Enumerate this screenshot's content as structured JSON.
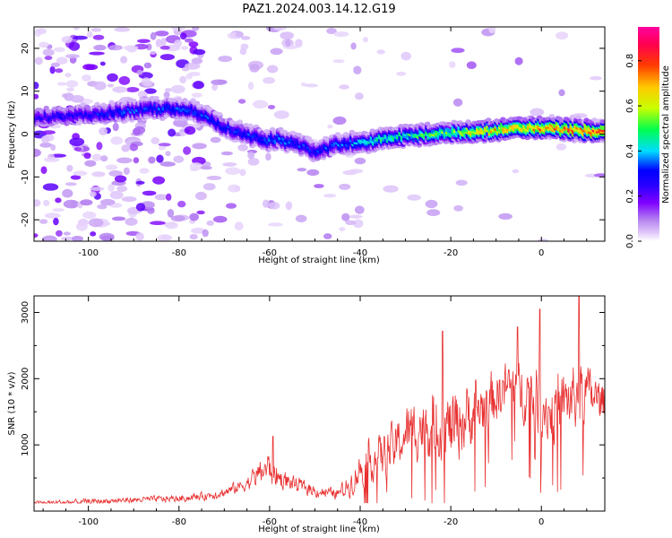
{
  "title": "PAZ1.2024.003.14.12.G19",
  "chart_data": [
    {
      "type": "heatmap",
      "xlabel": "Height of straight line (km)",
      "ylabel": "Frequency (Hz)",
      "xlim": [
        -112,
        14
      ],
      "ylim": [
        -25,
        25
      ],
      "xticks": [
        -100,
        -80,
        -60,
        -40,
        -20,
        0
      ],
      "yticks": [
        -20,
        -10,
        0,
        10,
        20
      ],
      "colorbar": {
        "label": "Normalized spectral amplitude",
        "range": [
          0,
          0.95
        ],
        "ticks": [
          0.0,
          0.2,
          0.4,
          0.6,
          0.8
        ],
        "colormap": [
          "#ffffff",
          "#b890f0",
          "#8000ff",
          "#0000ff",
          "#00ffff",
          "#00ff00",
          "#ffff00",
          "#ff8000",
          "#ff0000",
          "#ff00a0"
        ]
      },
      "ridge": {
        "x": [
          -112,
          -100,
          -95,
          -90,
          -85,
          -80,
          -77,
          -75,
          -72,
          -70,
          -68,
          -65,
          -62,
          -60,
          -58,
          -55,
          -52,
          -50,
          -48,
          -45,
          -42,
          -40,
          -37,
          -35,
          -30,
          -25,
          -20,
          -15,
          -10,
          -5,
          0,
          5,
          10,
          14
        ],
        "freq": [
          4,
          4.5,
          5,
          5.5,
          6,
          6,
          5.5,
          4.5,
          3,
          2,
          1,
          0,
          -1,
          -1.5,
          -1,
          -2,
          -3,
          -4,
          -3.5,
          -2.5,
          -2,
          -2,
          -1.5,
          -1,
          -0.5,
          0,
          0.3,
          0.5,
          1,
          1.2,
          1.5,
          1.2,
          0.8,
          0.5
        ],
        "amp": [
          0.25,
          0.3,
          0.33,
          0.35,
          0.35,
          0.35,
          0.35,
          0.35,
          0.33,
          0.32,
          0.32,
          0.33,
          0.35,
          0.38,
          0.38,
          0.36,
          0.33,
          0.33,
          0.33,
          0.36,
          0.4,
          0.43,
          0.46,
          0.48,
          0.5,
          0.52,
          0.55,
          0.65,
          0.72,
          0.75,
          0.78,
          0.8,
          0.82,
          0.8
        ]
      }
    },
    {
      "type": "line",
      "xlabel": "Height of straight line (km)",
      "ylabel": "SNR (10 * v/v)",
      "xlim": [
        -112,
        14
      ],
      "ylim": [
        0,
        3250
      ],
      "xticks": [
        -100,
        -80,
        -60,
        -40,
        -20,
        0
      ],
      "yticks": [
        1000,
        2000,
        3000
      ],
      "series": [
        {
          "color": "#e83030",
          "envelope_x": [
            -112,
            -100,
            -90,
            -80,
            -75,
            -70,
            -65,
            -62,
            -60,
            -58,
            -55,
            -52,
            -50,
            -45,
            -42,
            -40,
            -38,
            -35,
            -32,
            -30,
            -28,
            -25,
            -22,
            -20,
            -18,
            -15,
            -12,
            -10,
            -8,
            -5,
            -3,
            0,
            2,
            5,
            8,
            10,
            12,
            14
          ],
          "envelope_base": [
            120,
            140,
            170,
            190,
            220,
            280,
            420,
            600,
            650,
            500,
            420,
            350,
            300,
            260,
            420,
            650,
            750,
            850,
            1000,
            1150,
            1250,
            1300,
            1300,
            1250,
            1350,
            1500,
            1600,
            1750,
            1850,
            1900,
            1800,
            1600,
            1500,
            1650,
            1750,
            1800,
            1700,
            1650
          ],
          "envelope_noise": [
            50,
            60,
            60,
            70,
            80,
            100,
            150,
            250,
            350,
            220,
            160,
            140,
            120,
            110,
            250,
            350,
            400,
            450,
            500,
            550,
            600,
            650,
            700,
            750,
            700,
            650,
            600,
            550,
            550,
            600,
            650,
            700,
            650,
            600,
            650,
            550,
            450,
            400
          ],
          "peaks": [
            {
              "x": -59.3,
              "y": 1130
            },
            {
              "x": -21.8,
              "y": 2720
            },
            {
              "x": -0.3,
              "y": 3050
            },
            {
              "x": 8.3,
              "y": 3250
            },
            {
              "x": -5.2,
              "y": 2780
            }
          ]
        }
      ]
    }
  ]
}
